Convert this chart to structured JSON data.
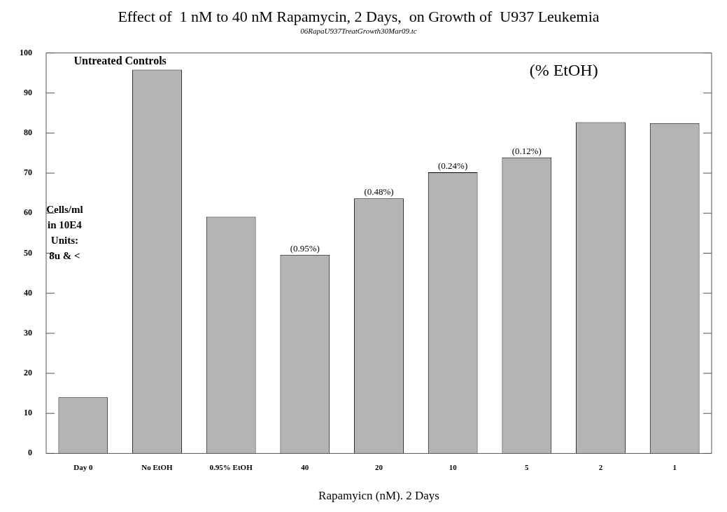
{
  "chart_data": {
    "type": "bar",
    "title": "Effect of  1 nM to 40 nM Rapamycin, 2 Days,  on Growth of  U937 Leukemia",
    "subtitle": "06RapaU937TreatGrowth30Mar09.tc",
    "xlabel": "Rapamyicn (nM). 2 Days",
    "ylabel": "Cells/ml in 10E4 Units: 8u & <",
    "categories": [
      "Day 0",
      "No EtOH",
      "0.95% EtOH",
      "40",
      "20",
      "10",
      "5",
      "2",
      "1"
    ],
    "values": [
      14,
      95.8,
      59.1,
      49.6,
      63.7,
      70.2,
      73.9,
      82.7,
      82.5
    ],
    "color": "#b4b4b4",
    "ylim": [
      0,
      100
    ],
    "yticks": [
      0,
      10,
      20,
      30,
      40,
      50,
      60,
      70,
      80,
      90,
      100
    ],
    "grid": false,
    "legend": false,
    "annotations": [
      "Untreated Controls",
      "(% EtOH)",
      {
        "text": "(0.95%)",
        "x": "40",
        "y": 49.6
      },
      {
        "text": "(0.48%)",
        "x": "20",
        "y": 63.7
      },
      {
        "text": "(0.24%)",
        "x": "10",
        "y": 70.2
      },
      {
        "text": "(0.12%)",
        "x": "5",
        "y": 73.9
      }
    ]
  }
}
